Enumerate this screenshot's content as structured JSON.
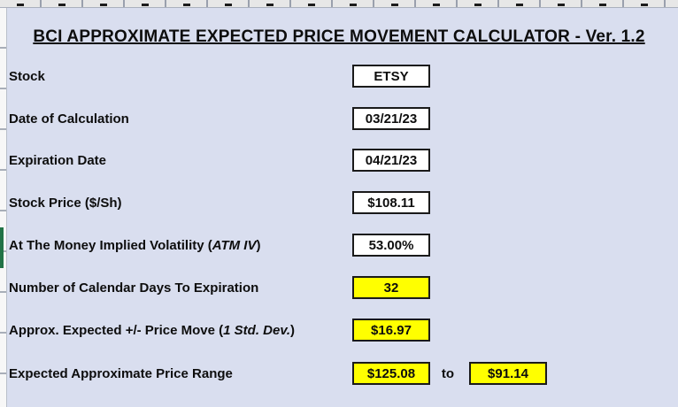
{
  "title": "BCI APPROXIMATE EXPECTED PRICE MOVEMENT CALCULATOR - Ver. 1.2",
  "rows": [
    {
      "label_pre": "Stock",
      "label_italic": "",
      "label_post": "",
      "value": "ETSY",
      "highlight": false
    },
    {
      "label_pre": "Date of Calculation",
      "label_italic": "",
      "label_post": "",
      "value": "03/21/23",
      "highlight": false
    },
    {
      "label_pre": "Expiration Date",
      "label_italic": "",
      "label_post": "",
      "value": "04/21/23",
      "highlight": false
    },
    {
      "label_pre": "Stock Price ($/Sh)",
      "label_italic": "",
      "label_post": "",
      "value": "$108.11",
      "highlight": false
    },
    {
      "label_pre": "At The Money Implied Volatility (",
      "label_italic": "ATM IV",
      "label_post": ")",
      "value": "53.00%",
      "highlight": false
    },
    {
      "label_pre": "Number of Calendar Days To Expiration",
      "label_italic": "",
      "label_post": "",
      "value": "32",
      "highlight": true
    },
    {
      "label_pre": "Approx. Expected +/- Price Move (",
      "label_italic": "1 Std. Dev.",
      "label_post": ")",
      "value": "$16.97",
      "highlight": true
    },
    {
      "label_pre": "Expected Approximate Price Range",
      "label_italic": "",
      "label_post": "",
      "value": "$125.08",
      "separator": "to",
      "value2": "$91.14",
      "highlight": true
    }
  ],
  "colors": {
    "sheet_background": "#d9deef",
    "highlight_cell": "#ffff00",
    "input_cell": "#ffffff",
    "cell_border": "#1a1a1a",
    "selection_indicator": "#217346"
  }
}
